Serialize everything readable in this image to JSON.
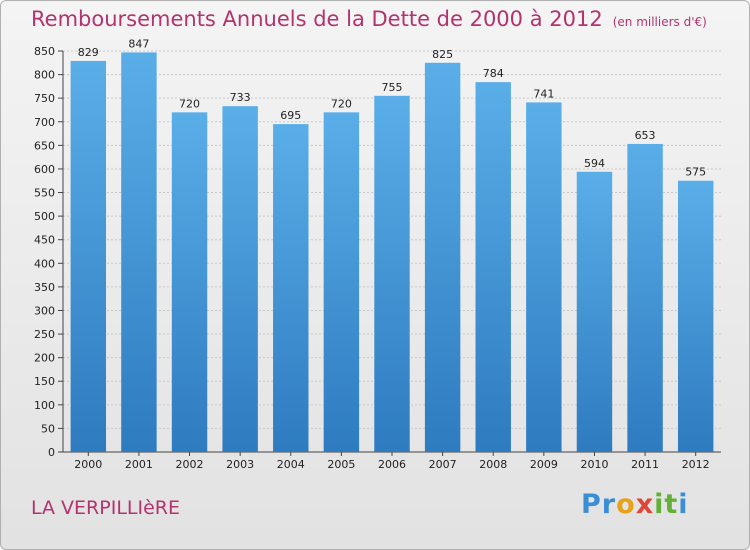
{
  "title": "Remboursements Annuels de la Dette de 2000 à 2012",
  "subtitle": "(en milliers d'€)",
  "footer_label": "LA VERPILLIèRE",
  "logo": {
    "letters": [
      "P",
      "r",
      "o",
      "x",
      "i",
      "t",
      "i"
    ],
    "colors": [
      "#3a8ed6",
      "#3a8ed6",
      "#e8a11a",
      "#e0453a",
      "#62b035",
      "#62b035",
      "#3a8ed6"
    ]
  },
  "colors": {
    "bar_top": "#5aaee8",
    "bar_bottom": "#2e7bc0",
    "title": "#b3336f"
  },
  "chart_data": {
    "type": "bar",
    "categories": [
      "2000",
      "2001",
      "2002",
      "2003",
      "2004",
      "2005",
      "2006",
      "2007",
      "2008",
      "2009",
      "2010",
      "2011",
      "2012"
    ],
    "values": [
      829,
      847,
      720,
      733,
      695,
      720,
      755,
      825,
      784,
      741,
      594,
      653,
      575
    ],
    "ylim": [
      0,
      850
    ],
    "ytick_step": 50,
    "grid": true
  }
}
